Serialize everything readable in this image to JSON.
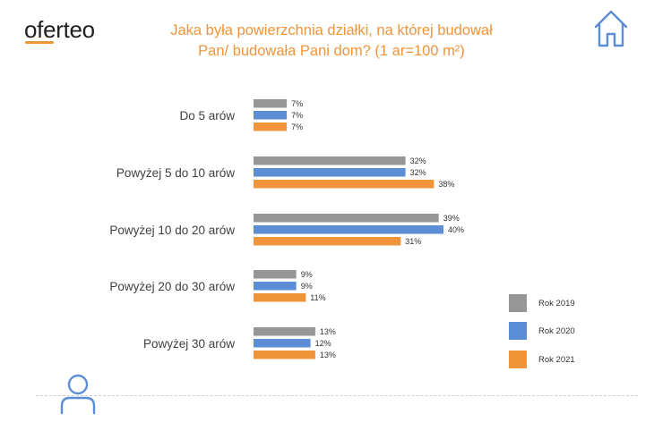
{
  "brand": {
    "name": "oferteo"
  },
  "chart_data": {
    "type": "bar",
    "orientation": "horizontal",
    "title_line1": "Jaka była powierzchnia działki, na której budował",
    "title_line2": "Pan/ budowała Pani dom? (1 ar=100 m²)",
    "categories": [
      "Do 5 arów",
      "Powyżej 5 do 10 arów",
      "Powyżej 10 do 20 arów",
      "Powyżej 20 do 30 arów",
      "Powyżej 30 arów"
    ],
    "series": [
      {
        "name": "Rok 2019",
        "color": "#969696",
        "values": [
          7,
          32,
          39,
          9,
          13
        ],
        "labels": [
          "7%",
          "32%",
          "39%",
          "9%",
          "13%"
        ]
      },
      {
        "name": "Rok 2020",
        "color": "#5b8ed6",
        "values": [
          7,
          32,
          40,
          9,
          12
        ],
        "labels": [
          "7%",
          "32%",
          "40%",
          "9%",
          "12%"
        ]
      },
      {
        "name": "Rok 2021",
        "color": "#f0943a",
        "values": [
          7,
          38,
          31,
          11,
          13
        ],
        "labels": [
          "7%",
          "38%",
          "31%",
          "11%",
          "13%"
        ]
      }
    ],
    "xlim": [
      0,
      40
    ],
    "grid": false,
    "legend_position": "right"
  },
  "icons": {
    "house": "house-icon",
    "user": "user-icon"
  }
}
